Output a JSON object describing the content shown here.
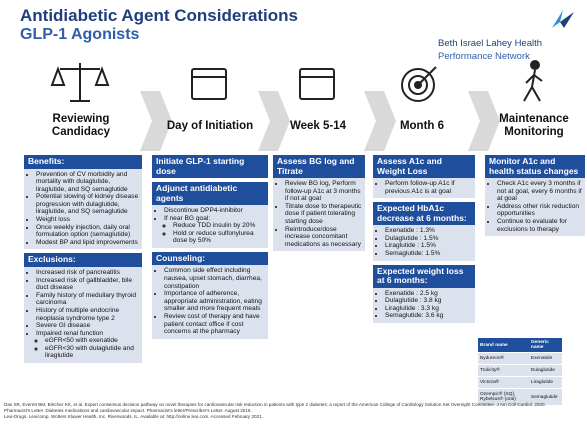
{
  "header": {
    "title": "Antidiabetic Agent Considerations",
    "subtitle": "GLP-1 Agonists",
    "logo_line1": "Beth Israel Lahey Health",
    "logo_line2": "Performance Network"
  },
  "stages": [
    "Reviewing Candidacy",
    "Day of Initiation",
    "Week 5-14",
    "Month 6",
    "Maintenance Monitoring"
  ],
  "columns": [
    {
      "sections": [
        {
          "heading": "Benefits:",
          "items": [
            "Prevention of CV morbidity and mortality with dulaglutide, liraglutide, and SQ semaglutide",
            "Potential slowing of kidney disease progression with dulaglutide, liraglutide, and SQ semaglutide",
            "Weight loss",
            "Once weekly injection, daily oral formulation option (semaglutide)",
            "Modest BP and lipid improvements"
          ]
        },
        {
          "heading": "Exclusions:",
          "items": [
            "Increased risk of pancreatitis",
            "Increased risk of gallbladder, bile duct disease",
            "Family history of medullary thyroid carcinoma",
            "History of multiple endocrine neoplasia syndrome type 2",
            "Severe GI disease",
            {
              "text": "Impaired renal function",
              "sub": [
                "eGFR<50 with exenatide",
                "eGFR<30 with dulaglutide and liraglutide"
              ]
            }
          ]
        }
      ]
    },
    {
      "sections": [
        {
          "heading": "Initiate GLP-1 starting dose",
          "items": []
        },
        {
          "heading": "Adjunct antidiabetic agents",
          "items": [
            "Discontinue DPP4-inhibitor",
            {
              "text": "If near BG goal:",
              "sub": [
                "Reduce TDD insulin by 20%",
                "Hold or reduce sulfonylurea dose by 50%"
              ]
            }
          ]
        },
        {
          "heading": "Counseling:",
          "items": [
            "Common side effect including nausea, upset stomach, diarrhea, constipation",
            "Importance of adherence, appropriate administration, eating smaller and more frequent meals",
            "Review cost of therapy and have patient contact office if cost concerns at the pharmacy"
          ]
        }
      ]
    },
    {
      "sections": [
        {
          "heading": "Assess BG log and Titrate",
          "items": [
            "Review BG log, Perform follow-up A1c at 3 months if not at goal",
            "Titrate dose to therapeutic dose if patient tolerating starting dose",
            "Reintroduce/dose increase concomitant medications as necessary"
          ]
        }
      ]
    },
    {
      "sections": [
        {
          "heading": "Assess A1c and Weight Loss",
          "items": [
            "Perform follow-up A1c if previous A1c is at goal"
          ]
        },
        {
          "heading": "Expected HbA1c decrease at 6 months:",
          "items": [
            "Exenatide : 1.3%",
            "Dulaglutide : 1.5%",
            "Liraglutide : 1.5%",
            "Semaglutide: 1.5%"
          ]
        },
        {
          "heading": "Expected weight loss at 6 months:",
          "items": [
            "Exenatide : 2.5 kg",
            "Dulaglutide : 3.8 kg",
            "Liraglutide : 3.3 kg",
            "Semaglutide: 3.6 kg"
          ]
        }
      ]
    },
    {
      "sections": [
        {
          "heading": "Monitor A1c and health status changes",
          "items": [
            "Check A1c every 3 months if not at goal, every 6 months if at goal",
            "Address other risk reduction opportunities",
            "Continue to evaluate for exclusions to therapy"
          ]
        }
      ]
    }
  ],
  "table": {
    "header": [
      "Brand name",
      "Generic name"
    ],
    "rows": [
      [
        "Bydureon®",
        "Exenatide"
      ],
      [
        "Trulicity®",
        "Dulaglutide"
      ],
      [
        "Victoza®",
        "Liraglutide"
      ],
      [
        "Ozempic® (SQ), Rybelsus® (oral)",
        "Semaglutide"
      ]
    ]
  },
  "footer": [
    "Das SR, Everett BM, Birtcher KK, et al. Expert consensus decision pathway on novel therapies for cardiovascular risk reduction in patients with type 2 diabetes: a report of the American College of Cardiology Solution Set Oversight Committee. J Am Coll Cardiol. 2020.",
    "Pharmacist's Letter. Diabetes medications and cardiovascular impact. Pharmacist's letter/Prescriber's Letter. August 2016.",
    "Lexi-Drugs. Lexicomp. Wolters Kluwer Health, Inc. Riverwoods, IL. Available at: http://online.lexi.com. Accessed February 2021."
  ]
}
